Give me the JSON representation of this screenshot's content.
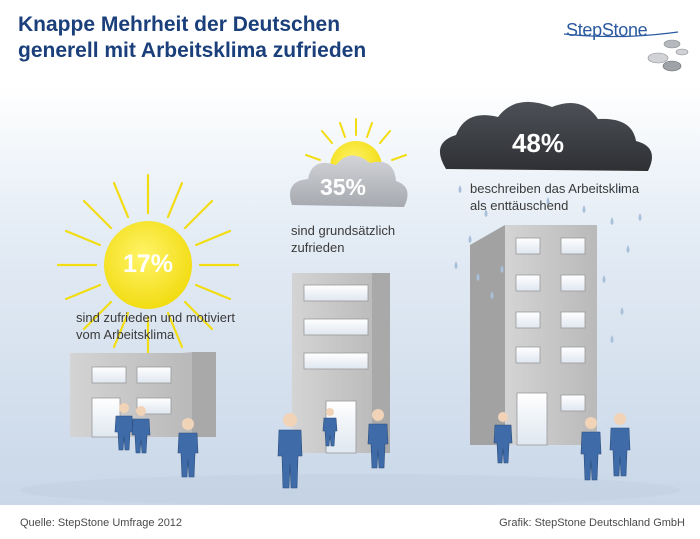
{
  "header": {
    "title_line1": "Knappe Mehrheit der Deutschen",
    "title_line2": "generell mit Arbeitsklima zufrieden",
    "logo_text": "StepStone"
  },
  "groups": [
    {
      "value": "17%",
      "caption_line1": "sind zufrieden und motiviert",
      "caption_line2": "vom Arbeitsklima",
      "icon": "sun-icon"
    },
    {
      "value": "35%",
      "caption_line1": "sind grundsätzlich",
      "caption_line2": "zufrieden",
      "icon": "cloud-sun-icon"
    },
    {
      "value": "48%",
      "caption_line1": "beschreiben das Arbeitsklima",
      "caption_line2": "als enttäuschend",
      "icon": "rain-cloud-icon"
    }
  ],
  "footer": {
    "source": "Quelle: StepStone Umfrage 2012",
    "credit": "Grafik: StepStone Deutschland GmbH"
  },
  "colors": {
    "title": "#1a3f7a",
    "sun": "#f5e21c",
    "cloud_light": "#b9bcc2",
    "cloud_dark": "#3b3d42",
    "building": "#c9c9c9",
    "sky": "#d6e2ef",
    "suit": "#3f6ca8"
  }
}
